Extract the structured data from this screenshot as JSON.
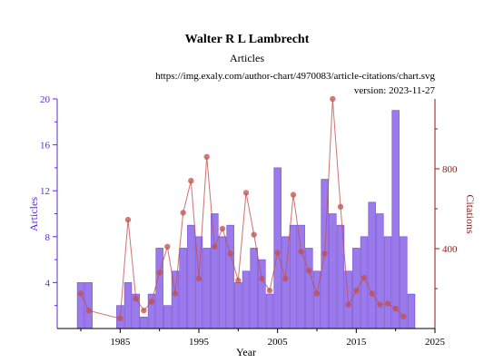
{
  "colors": {
    "bar_fill": "#8a63e8",
    "bar_stroke": "#6f47d9",
    "line": "#c0504d",
    "point": "#c0504d",
    "left_axis": "#5b2bd6",
    "right_axis": "#8b1a1a",
    "text": "#000000"
  },
  "chart_data": {
    "type": "bar",
    "title": "Walter R L Lambrecht",
    "subtitle": "Articles",
    "source_url": "https://img.exaly.com/author-chart/4970083/article-citations/chart.svg",
    "version": "version: 2023-11-27",
    "xlabel": "Year",
    "ylabel_left": "Articles",
    "ylabel_right": "Citations",
    "xlim": [
      1977,
      2025
    ],
    "xticks": [
      1985,
      1995,
      2005,
      2015,
      2025
    ],
    "ylim_left": [
      0,
      20
    ],
    "yticks_left": [
      4,
      8,
      12,
      16,
      20
    ],
    "ylim_right": [
      0,
      1150
    ],
    "yticks_right": [
      400,
      800
    ],
    "series": [
      {
        "name": "Articles",
        "kind": "bar",
        "axis": "left",
        "x": [
          1980,
          1981,
          1985,
          1986,
          1987,
          1988,
          1989,
          1990,
          1991,
          1992,
          1993,
          1994,
          1995,
          1996,
          1997,
          1998,
          1999,
          2000,
          2001,
          2002,
          2003,
          2004,
          2005,
          2006,
          2007,
          2008,
          2009,
          2010,
          2011,
          2012,
          2013,
          2014,
          2015,
          2016,
          2017,
          2018,
          2019,
          2020,
          2021,
          2022
        ],
        "values": [
          4,
          4,
          2,
          4,
          3,
          1,
          3,
          7,
          2,
          5,
          7,
          9,
          8,
          7,
          10,
          8,
          9,
          4,
          5,
          7,
          6,
          3,
          14,
          8,
          9,
          9,
          7,
          5,
          13,
          10,
          9,
          5,
          7,
          8,
          11,
          10,
          8,
          19,
          8,
          3
        ]
      },
      {
        "name": "Citations",
        "kind": "line",
        "axis": "right",
        "x": [
          1980,
          1981,
          1985,
          1986,
          1987,
          1988,
          1989,
          1990,
          1991,
          1992,
          1993,
          1994,
          1995,
          1996,
          1997,
          1998,
          1999,
          2000,
          2001,
          2002,
          2003,
          2004,
          2005,
          2006,
          2007,
          2008,
          2009,
          2010,
          2011,
          2012,
          2013,
          2014,
          2015,
          2016,
          2017,
          2018,
          2019,
          2020,
          2021
        ],
        "values": [
          175,
          90,
          50,
          545,
          150,
          90,
          135,
          280,
          410,
          175,
          580,
          740,
          250,
          860,
          410,
          500,
          375,
          240,
          680,
          470,
          250,
          190,
          380,
          250,
          670,
          385,
          290,
          175,
          375,
          1150,
          610,
          120,
          190,
          255,
          175,
          120,
          125,
          100,
          60
        ]
      }
    ]
  }
}
